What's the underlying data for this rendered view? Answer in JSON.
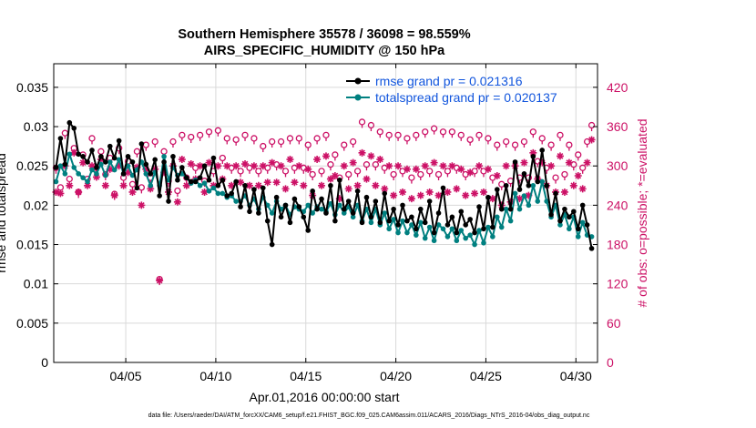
{
  "chart_data": {
    "type": "line",
    "title_line1": "Southern Hemisphere 35578 / 36098 = 98.559%",
    "title_line2": "AIRS_SPECIFIC_HUMIDITY @ 150 hPa",
    "xlabel": "Apr.01,2016 00:00:00 start",
    "ylabel": "rmse and totalspread",
    "y2label": "# of obs: o=possible; *=evaluated",
    "footer": "data file: /Users/raeder/DAI/ATM_forcXX/CAM6_setup/f.e21.FHIST_BGC.f09_025.CAM6assim.011/ACARS_2016/Diags_NTrS_2016-04/obs_diag_output.nc",
    "xlim": [
      1,
      31.2
    ],
    "ylim": [
      0,
      0.038
    ],
    "y2lim": [
      0,
      456
    ],
    "x_ticks": [
      5,
      10,
      15,
      20,
      25,
      30
    ],
    "x_tick_labels": [
      "04/05",
      "04/10",
      "04/15",
      "04/20",
      "04/25",
      "04/30"
    ],
    "y_ticks": [
      "0",
      "0.005",
      "0.01",
      "0.015",
      "0.02",
      "0.025",
      "0.03",
      "0.035"
    ],
    "y2_ticks": [
      "0",
      "60",
      "120",
      "180",
      "240",
      "300",
      "360",
      "420"
    ],
    "legend": [
      "rmse grand pr = 0.021316",
      "totalspread grand pr = 0.020137"
    ],
    "colors": {
      "rmse": "#000000",
      "spread": "#008080",
      "obs": "#cc1166",
      "legend_text": "#1155dd",
      "grid": "#d9d9d9"
    },
    "x": [
      1.125,
      1.375,
      1.625,
      1.875,
      2.125,
      2.375,
      2.625,
      2.875,
      3.125,
      3.375,
      3.625,
      3.875,
      4.125,
      4.375,
      4.625,
      4.875,
      5.125,
      5.375,
      5.625,
      5.875,
      6.125,
      6.375,
      6.625,
      6.875,
      7.125,
      7.375,
      7.625,
      7.875,
      8.125,
      8.375,
      8.625,
      8.875,
      9.125,
      9.375,
      9.625,
      9.875,
      10.125,
      10.375,
      10.625,
      10.875,
      11.125,
      11.375,
      11.625,
      11.875,
      12.125,
      12.375,
      12.625,
      12.875,
      13.125,
      13.375,
      13.625,
      13.875,
      14.125,
      14.375,
      14.625,
      14.875,
      15.125,
      15.375,
      15.625,
      15.875,
      16.125,
      16.375,
      16.625,
      16.875,
      17.125,
      17.375,
      17.625,
      17.875,
      18.125,
      18.375,
      18.625,
      18.875,
      19.125,
      19.375,
      19.625,
      19.875,
      20.125,
      20.375,
      20.625,
      20.875,
      21.125,
      21.375,
      21.625,
      21.875,
      22.125,
      22.375,
      22.625,
      22.875,
      23.125,
      23.375,
      23.625,
      23.875,
      24.125,
      24.375,
      24.625,
      24.875,
      25.125,
      25.375,
      25.625,
      25.875,
      26.125,
      26.375,
      26.625,
      26.875,
      27.125,
      27.375,
      27.625,
      27.875,
      28.125,
      28.375,
      28.625,
      28.875,
      29.125,
      29.375,
      29.625,
      29.875,
      30.125,
      30.375,
      30.625,
      30.875
    ],
    "series": [
      {
        "name": "rmse grand pr = 0.021316",
        "marker": "o-filled",
        "values": [
          0.0248,
          0.0285,
          0.0252,
          0.0305,
          0.0298,
          0.0265,
          0.0262,
          0.0255,
          0.027,
          0.0248,
          0.0262,
          0.0255,
          0.0275,
          0.026,
          0.0282,
          0.024,
          0.0262,
          0.0255,
          0.0222,
          0.0278,
          0.0252,
          0.024,
          0.0258,
          0.0212,
          0.0255,
          0.0205,
          0.0262,
          0.0232,
          0.0248,
          0.0235,
          0.023,
          0.023,
          0.0235,
          0.025,
          0.0232,
          0.026,
          0.0225,
          0.0232,
          0.0212,
          0.0215,
          0.023,
          0.0198,
          0.0225,
          0.0192,
          0.022,
          0.019,
          0.0222,
          0.018,
          0.015,
          0.021,
          0.0185,
          0.02,
          0.0178,
          0.0208,
          0.0198,
          0.0185,
          0.0168,
          0.0218,
          0.0195,
          0.0208,
          0.019,
          0.0225,
          0.018,
          0.0232,
          0.0195,
          0.0205,
          0.019,
          0.0218,
          0.0178,
          0.021,
          0.0185,
          0.0205,
          0.0178,
          0.0215,
          0.018,
          0.0195,
          0.0175,
          0.02,
          0.018,
          0.0185,
          0.017,
          0.0195,
          0.0178,
          0.0205,
          0.0165,
          0.019,
          0.0222,
          0.0175,
          0.0185,
          0.0165,
          0.0192,
          0.0175,
          0.0182,
          0.0165,
          0.0198,
          0.017,
          0.021,
          0.0172,
          0.022,
          0.0195,
          0.0225,
          0.0195,
          0.0255,
          0.022,
          0.024,
          0.0225,
          0.0262,
          0.023,
          0.027,
          0.0225,
          0.0188,
          0.0215,
          0.018,
          0.0195,
          0.0185,
          0.0192,
          0.017,
          0.02,
          0.0175,
          0.0145
        ]
      },
      {
        "name": "totalspread grand pr = 0.020137",
        "marker": "o-filled",
        "values": [
          0.023,
          0.025,
          0.024,
          0.0265,
          0.0248,
          0.024,
          0.0235,
          0.023,
          0.0245,
          0.024,
          0.0252,
          0.0238,
          0.0255,
          0.0245,
          0.0258,
          0.024,
          0.025,
          0.0238,
          0.0245,
          0.0255,
          0.024,
          0.0225,
          0.0242,
          0.0225,
          0.0262,
          0.0232,
          0.0248,
          0.0238,
          0.024,
          0.0235,
          0.0228,
          0.0232,
          0.0225,
          0.0228,
          0.0218,
          0.0222,
          0.0215,
          0.0215,
          0.021,
          0.0212,
          0.0205,
          0.0205,
          0.0212,
          0.02,
          0.0208,
          0.0195,
          0.021,
          0.02,
          0.019,
          0.0205,
          0.0195,
          0.02,
          0.0188,
          0.0198,
          0.0195,
          0.0192,
          0.02,
          0.019,
          0.0198,
          0.0195,
          0.0192,
          0.0202,
          0.0188,
          0.02,
          0.019,
          0.0198,
          0.0185,
          0.02,
          0.018,
          0.0195,
          0.0178,
          0.0195,
          0.0175,
          0.019,
          0.017,
          0.0182,
          0.0165,
          0.018,
          0.0165,
          0.0175,
          0.0162,
          0.0178,
          0.0158,
          0.0172,
          0.0155,
          0.0175,
          0.017,
          0.016,
          0.017,
          0.0155,
          0.0168,
          0.0158,
          0.0162,
          0.015,
          0.0168,
          0.0152,
          0.0172,
          0.016,
          0.0185,
          0.0172,
          0.0195,
          0.018,
          0.0215,
          0.0195,
          0.0212,
          0.02,
          0.0225,
          0.0205,
          0.023,
          0.0205,
          0.0185,
          0.02,
          0.0175,
          0.0188,
          0.017,
          0.0185,
          0.016,
          0.0178,
          0.0162,
          0.016
        ]
      },
      {
        "name": "obs possible",
        "marker": "o-open",
        "axis": "right",
        "values": [
          295,
          265,
          348,
          278,
          325,
          258,
          315,
          278,
          340,
          295,
          320,
          285,
          310,
          255,
          325,
          280,
          305,
          270,
          320,
          265,
          330,
          280,
          335,
          125,
          320,
          275,
          335,
          260,
          345,
          280,
          342,
          295,
          345,
          275,
          350,
          290,
          352,
          310,
          340,
          295,
          338,
          290,
          345,
          295,
          340,
          290,
          328,
          295,
          335,
          300,
          335,
          290,
          340,
          295,
          340,
          295,
          330,
          285,
          340,
          290,
          345,
          300,
          315,
          280,
          330,
          285,
          335,
          290,
          365,
          300,
          360,
          300,
          350,
          295,
          345,
          285,
          345,
          290,
          340,
          280,
          345,
          285,
          350,
          290,
          355,
          285,
          350,
          290,
          350,
          295,
          345,
          285,
          338,
          290,
          345,
          290,
          340,
          280,
          330,
          270,
          335,
          275,
          330,
          280,
          335,
          280,
          350,
          305,
          340,
          295,
          330,
          280,
          345,
          285,
          330,
          300,
          315,
          295,
          335,
          360
        ]
      },
      {
        "name": "obs evaluated",
        "marker": "asterisk",
        "axis": "right",
        "values": [
          260,
          258,
          300,
          270,
          320,
          260,
          305,
          270,
          300,
          283,
          310,
          270,
          295,
          255,
          300,
          270,
          290,
          260,
          298,
          240,
          295,
          265,
          295,
          125,
          290,
          260,
          300,
          245,
          310,
          270,
          303,
          280,
          300,
          260,
          305,
          270,
          300,
          280,
          300,
          270,
          300,
          275,
          303,
          270,
          300,
          270,
          300,
          275,
          305,
          275,
          300,
          265,
          310,
          275,
          300,
          270,
          295,
          255,
          310,
          270,
          315,
          280,
          285,
          250,
          300,
          265,
          305,
          270,
          320,
          280,
          315,
          270,
          310,
          265,
          300,
          255,
          300,
          260,
          295,
          250,
          295,
          255,
          300,
          260,
          305,
          255,
          300,
          260,
          300,
          265,
          295,
          255,
          290,
          258,
          300,
          260,
          295,
          250,
          285,
          240,
          300,
          245,
          300,
          250,
          305,
          255,
          320,
          280,
          305,
          270,
          300,
          260,
          315,
          260,
          305,
          270,
          285,
          265,
          305,
          340
        ]
      }
    ]
  }
}
